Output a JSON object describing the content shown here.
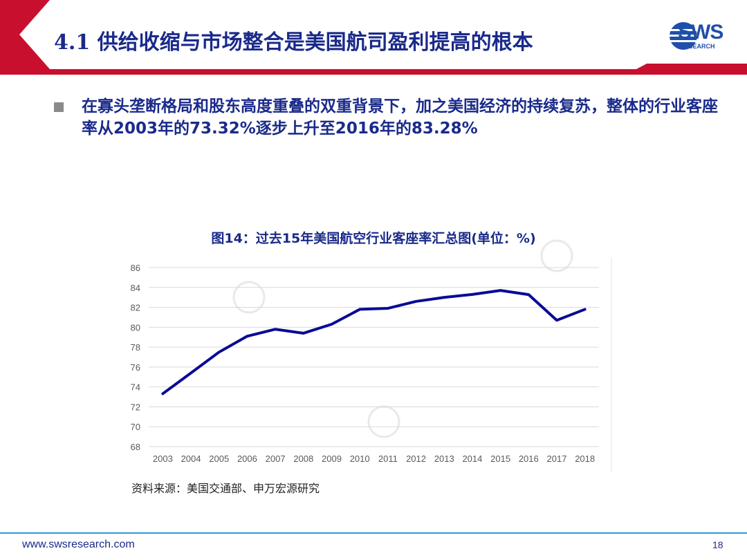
{
  "header": {
    "title": "4.1 供给收缩与市场整合是美国航司盈利提高的根本",
    "logo_text": "SWS",
    "logo_sub": "RESEARCH"
  },
  "bullet": {
    "text": "在寡头垄断格局和股东高度重叠的双重背景下，加之美国经济的持续复苏，整体的行业客座率从2003年的73.32%逐步上升至2016年的83.28%"
  },
  "chart_data": {
    "type": "line",
    "title": "图14：过去15年美国航空行业客座率汇总图(单位：%)",
    "x": [
      "2003",
      "2004",
      "2005",
      "2006",
      "2007",
      "2008",
      "2009",
      "2010",
      "2011",
      "2012",
      "2013",
      "2014",
      "2015",
      "2016",
      "2017",
      "2018"
    ],
    "series": [
      {
        "values": [
          73.32,
          75.4,
          77.5,
          79.1,
          79.8,
          79.4,
          80.3,
          81.8,
          81.9,
          82.6,
          83.0,
          83.3,
          83.7,
          83.28,
          80.7,
          81.8
        ]
      }
    ],
    "ylim": [
      68,
      86
    ],
    "yticks": [
      68,
      70,
      72,
      74,
      76,
      78,
      80,
      82,
      84,
      86
    ],
    "grid": true,
    "line_color": "#0a0a96",
    "source": "资料来源：美国交通部、申万宏源研究"
  },
  "footer": {
    "url": "www.swsresearch.com",
    "page": "18"
  },
  "colors": {
    "accent_red": "#c8102e",
    "title_blue": "#1a2a8a",
    "footer_blue": "#2a9ad8"
  }
}
